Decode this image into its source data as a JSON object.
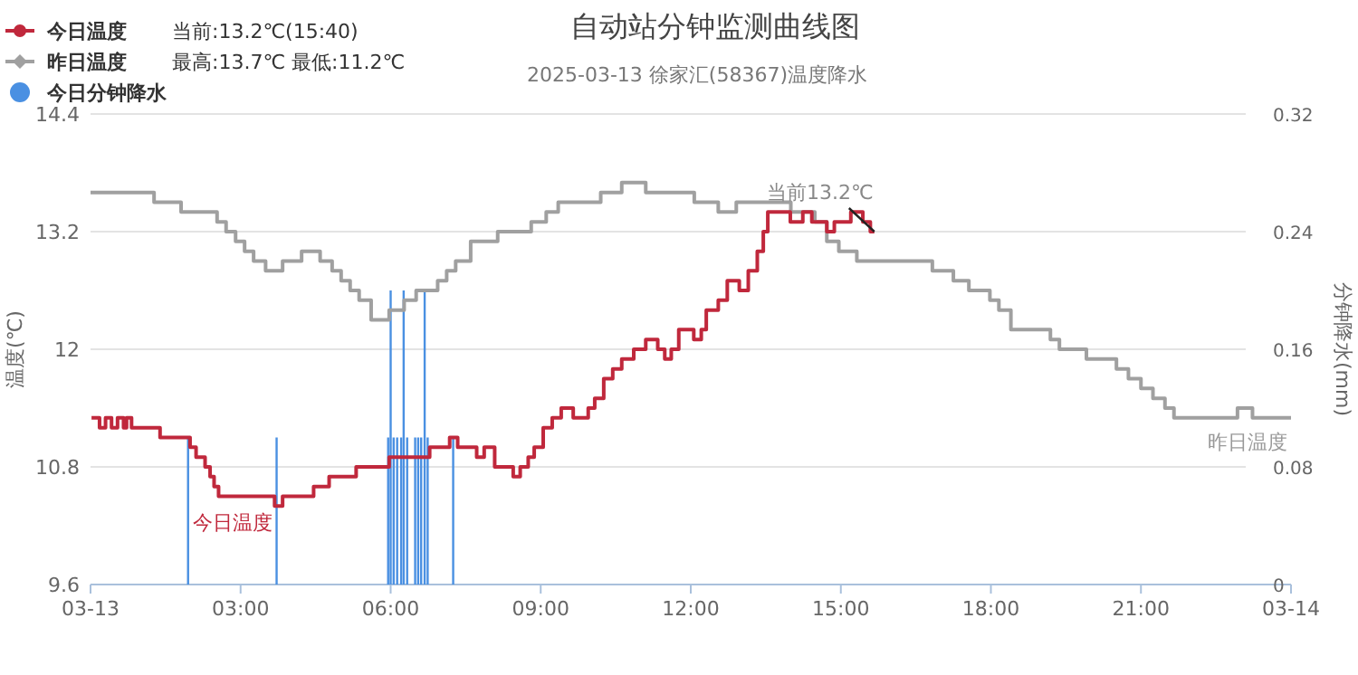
{
  "chart_data": {
    "type": "step",
    "title": "自动站分钟监测曲线图",
    "subtitle": "2025-03-13 徐家汇(58367)温度降水",
    "ylabel": "温度(℃)",
    "y2label": "分钟降水(mm)",
    "xlim": [
      0,
      24
    ],
    "xticks": [
      {
        "value": 0,
        "label": "03-13"
      },
      {
        "value": 3,
        "label": "03:00"
      },
      {
        "value": 6,
        "label": "06:00"
      },
      {
        "value": 9,
        "label": "09:00"
      },
      {
        "value": 12,
        "label": "12:00"
      },
      {
        "value": 15,
        "label": "15:00"
      },
      {
        "value": 18,
        "label": "18:00"
      },
      {
        "value": 21,
        "label": "21:00"
      },
      {
        "value": 24,
        "label": "03-14"
      }
    ],
    "ylim": [
      9.6,
      14.4
    ],
    "yticks": [
      9.6,
      10.8,
      12,
      13.2,
      14.4
    ],
    "y2lim": [
      0,
      0.32
    ],
    "y2ticks": [
      0,
      0.08,
      0.16,
      0.24,
      0.32
    ],
    "grid": "y",
    "legend": "top left",
    "marker": "none",
    "annotations": [
      "当前:13.2℃(15:40)",
      "最高:13.7℃ 最低:11.2℃",
      {
        "text": "当前13.2℃",
        "x": 15.67,
        "y": 13.2
      }
    ],
    "series": [
      {
        "name": "今日分钟降水",
        "type": "bar",
        "axis": "y2",
        "color": "#4a90e2",
        "x": [
          1.95,
          3.72,
          5.95,
          6.0,
          6.06,
          6.13,
          6.21,
          6.26,
          6.33,
          6.49,
          6.55,
          6.61,
          6.68,
          6.74,
          7.25
        ],
        "values": [
          0.1,
          0.1,
          0.1,
          0.2,
          0.1,
          0.1,
          0.1,
          0.2,
          0.1,
          0.1,
          0.1,
          0.1,
          0.2,
          0.1,
          0.1
        ]
      },
      {
        "name": "昨日温度",
        "color": "#a0a0a0",
        "x": [
          0,
          1.27,
          1.81,
          2.53,
          2.71,
          2.9,
          3.08,
          3.26,
          3.5,
          3.84,
          4.22,
          4.59,
          4.83,
          5.01,
          5.19,
          5.37,
          5.61,
          5.97,
          6.27,
          6.51,
          6.94,
          7.12,
          7.3,
          7.6,
          8.14,
          8.81,
          9.11,
          9.35,
          10.2,
          10.62,
          11.1,
          12.07,
          12.55,
          12.91,
          14.0,
          14.48,
          14.72,
          14.96,
          15.32,
          16.83,
          17.25,
          17.56,
          17.98,
          18.16,
          18.4,
          19.19,
          19.37,
          19.91,
          20.51,
          20.75,
          21.0,
          21.24,
          21.48,
          21.66,
          22.93,
          23.23,
          24
        ],
        "values": [
          13.6,
          13.5,
          13.4,
          13.3,
          13.2,
          13.1,
          13.0,
          12.9,
          12.8,
          12.9,
          13.0,
          12.9,
          12.8,
          12.7,
          12.6,
          12.5,
          12.3,
          12.4,
          12.5,
          12.6,
          12.7,
          12.8,
          12.9,
          13.1,
          13.2,
          13.3,
          13.4,
          13.5,
          13.6,
          13.7,
          13.6,
          13.5,
          13.4,
          13.5,
          13.4,
          13.3,
          13.1,
          13.0,
          12.9,
          12.8,
          12.7,
          12.6,
          12.5,
          12.4,
          12.2,
          12.1,
          12.0,
          11.9,
          11.8,
          11.7,
          11.6,
          11.5,
          11.4,
          11.3,
          11.4,
          11.3,
          11.3
        ]
      },
      {
        "name": "今日温度",
        "color": "#c0283c",
        "x": [
          0.02,
          0.18,
          0.3,
          0.42,
          0.54,
          0.66,
          0.72,
          0.82,
          1.39,
          1.99,
          2.11,
          2.29,
          2.39,
          2.47,
          2.56,
          3.68,
          3.84,
          4.46,
          4.77,
          5.31,
          5.97,
          6.78,
          7.18,
          7.34,
          7.72,
          7.87,
          8.08,
          8.45,
          8.59,
          8.75,
          8.87,
          9.05,
          9.23,
          9.41,
          9.65,
          9.95,
          10.08,
          10.26,
          10.44,
          10.62,
          10.86,
          11.1,
          11.34,
          11.48,
          11.61,
          11.76,
          12.06,
          12.21,
          12.31,
          12.55,
          12.73,
          12.97,
          13.15,
          13.33,
          13.45,
          13.54,
          13.99,
          14.24,
          14.42,
          14.72,
          14.87,
          15.2,
          15.44,
          15.59,
          15.67
        ],
        "values": [
          11.3,
          11.2,
          11.3,
          11.2,
          11.3,
          11.2,
          11.3,
          11.2,
          11.1,
          11.0,
          10.9,
          10.8,
          10.7,
          10.6,
          10.5,
          10.4,
          10.5,
          10.6,
          10.7,
          10.8,
          10.9,
          11.0,
          11.1,
          11.0,
          10.9,
          11.0,
          10.8,
          10.7,
          10.8,
          10.9,
          11.0,
          11.2,
          11.3,
          11.4,
          11.3,
          11.4,
          11.5,
          11.7,
          11.8,
          11.9,
          12.0,
          12.1,
          12.0,
          11.9,
          12.0,
          12.2,
          12.1,
          12.2,
          12.4,
          12.5,
          12.7,
          12.6,
          12.8,
          13.0,
          13.2,
          13.4,
          13.3,
          13.4,
          13.3,
          13.2,
          13.3,
          13.4,
          13.3,
          13.2,
          13.2
        ]
      }
    ]
  }
}
